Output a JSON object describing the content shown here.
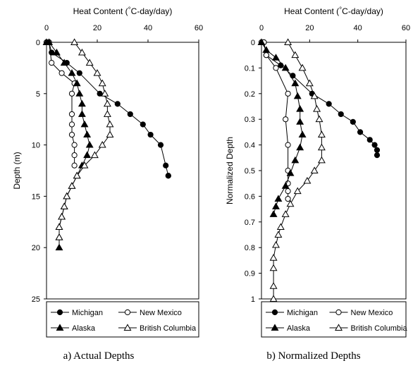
{
  "chart_data": [
    {
      "type": "line",
      "xlabel": "Heat Content (°C-day/day)",
      "ylabel": "Depth (m)",
      "xlim": [
        0,
        60
      ],
      "ylim": [
        0,
        25
      ],
      "y_inverted": true,
      "x_axis_position": "top",
      "xticks": [
        "0",
        "20",
        "40",
        "60"
      ],
      "yticks": [
        "0",
        "5",
        "10",
        "15",
        "20",
        "25"
      ],
      "caption": "a) Actual Depths",
      "legend": {
        "position": "bottom",
        "entries": [
          "Michigan",
          "New Mexico",
          "Alaska",
          "British Columbia"
        ]
      },
      "series": [
        {
          "name": "Michigan",
          "marker": "filled-circle",
          "points": [
            [
              0,
              0
            ],
            [
              1,
              0
            ],
            [
              2,
              1
            ],
            [
              8,
              2
            ],
            [
              13,
              3
            ],
            [
              21,
              5
            ],
            [
              28,
              6
            ],
            [
              33,
              7
            ],
            [
              38,
              8
            ],
            [
              41,
              9
            ],
            [
              45,
              10
            ],
            [
              47,
              12
            ],
            [
              48,
              13
            ],
            [
              48,
              13
            ]
          ]
        },
        {
          "name": "New Mexico",
          "marker": "open-circle",
          "points": [
            [
              0,
              0
            ],
            [
              1,
              0
            ],
            [
              2,
              2
            ],
            [
              6,
              3
            ],
            [
              11,
              4
            ],
            [
              10,
              5
            ],
            [
              10,
              7
            ],
            [
              10,
              8
            ],
            [
              10,
              9
            ],
            [
              11,
              10
            ],
            [
              11,
              11
            ],
            [
              11,
              12
            ]
          ]
        },
        {
          "name": "Alaska",
          "marker": "filled-triangle",
          "points": [
            [
              0,
              0
            ],
            [
              1,
              0
            ],
            [
              4,
              1
            ],
            [
              7,
              2
            ],
            [
              10,
              3
            ],
            [
              12,
              4
            ],
            [
              13,
              5
            ],
            [
              14,
              6
            ],
            [
              14,
              7
            ],
            [
              15,
              8
            ],
            [
              16,
              9
            ],
            [
              17,
              10
            ],
            [
              16,
              11
            ],
            [
              14,
              12
            ],
            [
              12,
              13
            ],
            [
              10,
              14
            ],
            [
              8,
              15
            ],
            [
              7,
              16
            ],
            [
              6,
              17
            ],
            [
              5,
              18
            ],
            [
              5,
              19
            ],
            [
              5,
              20
            ]
          ]
        },
        {
          "name": "British Columbia",
          "marker": "open-triangle",
          "points": [
            [
              11,
              0
            ],
            [
              14,
              1
            ],
            [
              17,
              2
            ],
            [
              20,
              3
            ],
            [
              22,
              4
            ],
            [
              23,
              5
            ],
            [
              24,
              6
            ],
            [
              24,
              7
            ],
            [
              25,
              8
            ],
            [
              25,
              9
            ],
            [
              22,
              10
            ],
            [
              19,
              11
            ],
            [
              15,
              12
            ],
            [
              12,
              13
            ],
            [
              10,
              14
            ],
            [
              8,
              15
            ],
            [
              7,
              16
            ],
            [
              6,
              17
            ],
            [
              5,
              18
            ],
            [
              5,
              19
            ]
          ]
        }
      ]
    },
    {
      "type": "line",
      "xlabel": "Heat Content (°C-day/day)",
      "ylabel": "Normalized Depth",
      "xlim": [
        0,
        60
      ],
      "ylim": [
        0,
        1
      ],
      "y_inverted": true,
      "x_axis_position": "top",
      "xticks": [
        "0",
        "20",
        "40",
        "60"
      ],
      "yticks": [
        "0",
        "0.1",
        "0.2",
        "0.3",
        "0.4",
        "0.5",
        "0.6",
        "0.7",
        "0.8",
        "0.9",
        "1"
      ],
      "caption": "b) Normalized Depths",
      "legend": {
        "position": "bottom",
        "entries": [
          "Michigan",
          "New Mexico",
          "Alaska",
          "British Columbia"
        ]
      },
      "series": [
        {
          "name": "Michigan",
          "marker": "filled-circle",
          "points": [
            [
              0,
              0
            ],
            [
              1,
              0
            ],
            [
              2,
              0.05
            ],
            [
              8,
              0.09
            ],
            [
              13,
              0.13
            ],
            [
              21,
              0.2
            ],
            [
              28,
              0.24
            ],
            [
              33,
              0.28
            ],
            [
              38,
              0.31
            ],
            [
              41,
              0.35
            ],
            [
              45,
              0.38
            ],
            [
              47,
              0.4
            ],
            [
              48,
              0.42
            ],
            [
              48,
              0.44
            ]
          ]
        },
        {
          "name": "New Mexico",
          "marker": "open-circle",
          "points": [
            [
              0,
              0
            ],
            [
              1,
              0
            ],
            [
              2,
              0.05
            ],
            [
              6,
              0.1
            ],
            [
              11,
              0.2
            ],
            [
              10,
              0.3
            ],
            [
              11,
              0.4
            ],
            [
              11,
              0.5
            ],
            [
              11,
              0.55
            ],
            [
              11,
              0.58
            ],
            [
              11,
              0.61
            ]
          ]
        },
        {
          "name": "Alaska",
          "marker": "filled-triangle",
          "points": [
            [
              0,
              0
            ],
            [
              2,
              0.03
            ],
            [
              6,
              0.06
            ],
            [
              10,
              0.1
            ],
            [
              14,
              0.16
            ],
            [
              15,
              0.21
            ],
            [
              16,
              0.26
            ],
            [
              16,
              0.31
            ],
            [
              17,
              0.36
            ],
            [
              16,
              0.41
            ],
            [
              14,
              0.46
            ],
            [
              12,
              0.51
            ],
            [
              10,
              0.56
            ],
            [
              7,
              0.61
            ],
            [
              6,
              0.64
            ],
            [
              5,
              0.67
            ]
          ]
        },
        {
          "name": "British Columbia",
          "marker": "open-triangle",
          "points": [
            [
              11,
              0
            ],
            [
              14,
              0.05
            ],
            [
              17,
              0.1
            ],
            [
              20,
              0.16
            ],
            [
              22,
              0.21
            ],
            [
              23,
              0.26
            ],
            [
              24,
              0.3
            ],
            [
              25,
              0.36
            ],
            [
              25,
              0.41
            ],
            [
              25,
              0.46
            ],
            [
              22,
              0.5
            ],
            [
              19,
              0.54
            ],
            [
              15,
              0.58
            ],
            [
              12,
              0.63
            ],
            [
              10,
              0.67
            ],
            [
              8,
              0.72
            ],
            [
              7,
              0.75
            ],
            [
              6,
              0.79
            ],
            [
              5,
              0.84
            ],
            [
              5,
              0.88
            ],
            [
              5,
              0.95
            ],
            [
              5,
              1.0
            ]
          ]
        }
      ]
    }
  ]
}
